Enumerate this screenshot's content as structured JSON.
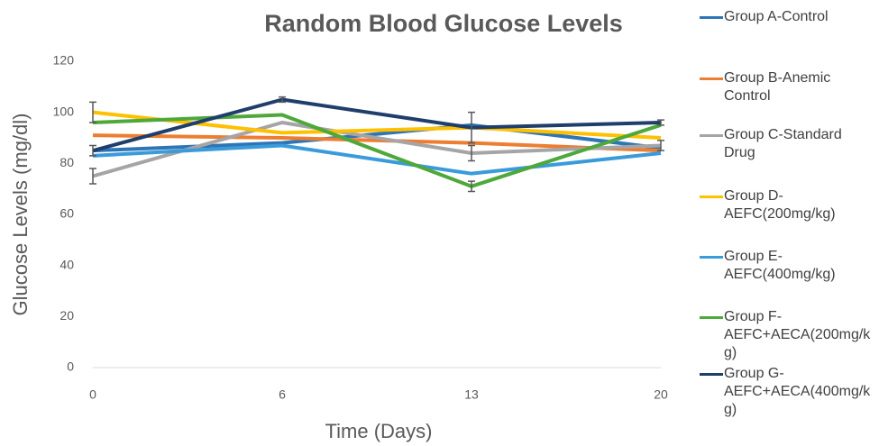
{
  "chart_data": {
    "type": "line",
    "title": "Random Blood Glucose Levels",
    "x_label": "Time (Days)",
    "y_label": "Glucose Levels (mg/dl)",
    "categories": [
      "0",
      "6",
      "13",
      "20"
    ],
    "ylim": [
      0,
      120
    ],
    "yticks": [
      0,
      20,
      40,
      60,
      80,
      100,
      120
    ],
    "series": [
      {
        "name": "Group A-Control",
        "color": "#2E75B6",
        "values": [
          85,
          88,
          95,
          86
        ],
        "errors": [
          2,
          null,
          null,
          null
        ]
      },
      {
        "name": "Group B-Anemic Control",
        "color": "#ED7D31",
        "values": [
          91,
          90,
          88,
          85
        ]
      },
      {
        "name": "Group C-Standard Drug",
        "color": "#A5A5A5",
        "values": [
          75,
          96,
          84,
          87
        ],
        "errors": [
          3,
          null,
          3,
          2
        ]
      },
      {
        "name": "Group D-AEFC(200mg/kg)",
        "color": "#FFC000",
        "values": [
          100,
          92,
          94,
          90
        ],
        "errors": [
          4,
          null,
          null,
          null
        ]
      },
      {
        "name": "Group E-AEFC(400mg/kg)",
        "color": "#3A9BDA",
        "values": [
          83,
          87,
          76,
          84
        ]
      },
      {
        "name": "Group F-AEFC+AECA(200mg/kg)",
        "color": "#4EA83A",
        "values": [
          96,
          99,
          71,
          95
        ],
        "errors": [
          null,
          null,
          2,
          null
        ]
      },
      {
        "name": "Group G-AEFC+AECA(400mg/kg)",
        "color": "#1F3E6B",
        "values": [
          85,
          105,
          94,
          96
        ],
        "errors": [
          null,
          1,
          6,
          1
        ]
      }
    ]
  }
}
